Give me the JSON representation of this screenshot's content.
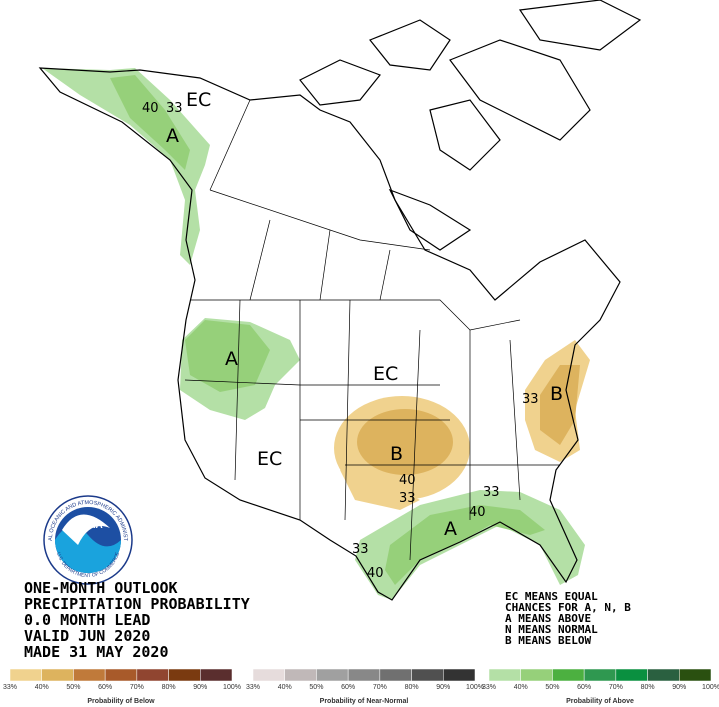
{
  "header": [
    "ONE-MONTH OUTLOOK",
    "PRECIPITATION PROBABILITY",
    "0.0 MONTH LEAD",
    "VALID JUN 2020",
    "MADE 31 MAY 2020"
  ],
  "notes": [
    "EC MEANS EQUAL",
    "CHANCES FOR A, N, B",
    "A MEANS ABOVE",
    "N MEANS NORMAL",
    "B MEANS BELOW"
  ],
  "map_labels": [
    "EC",
    "40",
    "33",
    "A",
    "A",
    "EC",
    "EC",
    "B",
    "40",
    "33",
    "33",
    "B",
    "33",
    "40",
    "A",
    "33",
    "40"
  ],
  "logo": {
    "text": "NOAA",
    "ring_top": "NATIONAL OCEANIC AND ATMOSPHERIC ADMINISTRATION",
    "ring_bottom": "U.S. DEPARTMENT OF COMMERCE"
  },
  "legend": [
    {
      "title": "Probability of Below",
      "labels": [
        "33%",
        "40%",
        "50%",
        "60%",
        "70%",
        "80%",
        "90%",
        "100%"
      ],
      "colors": [
        "#f0d28e",
        "#ddb35e",
        "#c07a3a",
        "#a85a2a",
        "#904530",
        "#7a3a10",
        "#5a2e2e"
      ]
    },
    {
      "title": "Probability of Near-Normal",
      "labels": [
        "33%",
        "40%",
        "50%",
        "60%",
        "70%",
        "80%",
        "90%",
        "100%"
      ],
      "colors": [
        "#e6dcdc",
        "#c0b8b8",
        "#a0a0a0",
        "#888888",
        "#707070",
        "#505050",
        "#333333"
      ]
    },
    {
      "title": "Probability of Above",
      "labels": [
        "33%",
        "40%",
        "50%",
        "60%",
        "70%",
        "80%",
        "90%",
        "100%"
      ],
      "colors": [
        "#b4e0a6",
        "#96d07a",
        "#4cb040",
        "#2f9850",
        "#0a9040",
        "#2a6040",
        "#2a5010"
      ]
    }
  ]
}
